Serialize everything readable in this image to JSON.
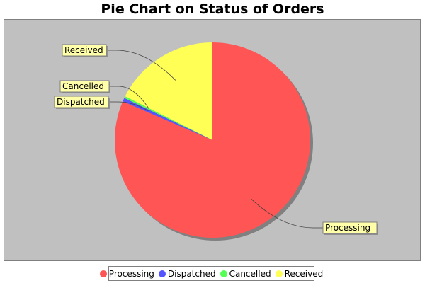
{
  "title": "Pie Chart on Status of Orders",
  "colors": {
    "plot_background": "#c0c0c0",
    "label_background": "#ffffaa"
  },
  "chart_data": {
    "type": "pie",
    "title": "Pie Chart on Status of Orders",
    "legend_position": "bottom",
    "slices": [
      {
        "label": "Processing",
        "value": 81.5,
        "color": "#ff5555"
      },
      {
        "label": "Dispatched",
        "value": 0.6,
        "color": "#5555ff"
      },
      {
        "label": "Cancelled",
        "value": 0.3,
        "color": "#55ff55"
      },
      {
        "label": "Received",
        "value": 17.6,
        "color": "#ffff55"
      }
    ]
  }
}
